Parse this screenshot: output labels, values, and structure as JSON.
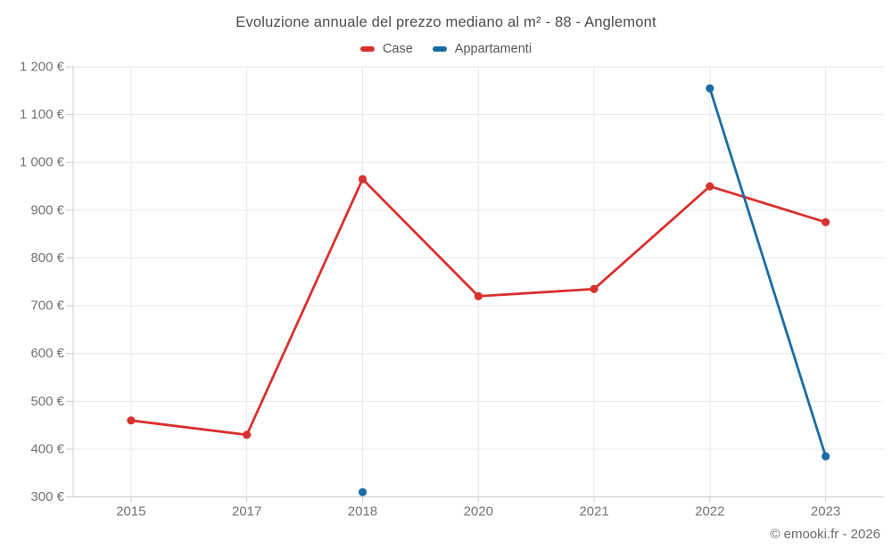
{
  "title": "Evoluzione annuale del prezzo mediano al m² - 88 - Anglemont",
  "footer": "© emooki.fr - 2026",
  "legend": [
    {
      "label": "Case",
      "color": "#d8312f"
    },
    {
      "label": "Appartamenti",
      "color": "#1b6ca3"
    }
  ],
  "colors": {
    "case_red": "#d8312f",
    "appartamenti_blue": "#1b6ca3",
    "gridline": "#e8e8e8",
    "axis": "#cccccc",
    "tick_label": "#737373"
  },
  "chart_data": {
    "type": "line",
    "title": "Evoluzione annuale del prezzo mediano al m² - 88 - Anglemont",
    "categories": [
      "2015",
      "2017",
      "2018",
      "2020",
      "2021",
      "2022",
      "2023"
    ],
    "series": [
      {
        "name": "Case",
        "color": "#d8312f",
        "values": [
          460,
          430,
          965,
          720,
          735,
          950,
          875
        ]
      },
      {
        "name": "Appartamenti",
        "color": "#1b6ca3",
        "values": [
          null,
          null,
          310,
          null,
          null,
          1155,
          385
        ]
      }
    ],
    "ylim": [
      300,
      1200
    ],
    "y_tick_step": 100,
    "y_tick_labels": [
      "300 €",
      "400 €",
      "500 €",
      "600 €",
      "700 €",
      "800 €",
      "900 €",
      "1 000 €",
      "1 100 €",
      "1 200 €"
    ],
    "currency_suffix": "€",
    "grid": true,
    "legend_position": "top",
    "marker": "circle"
  }
}
